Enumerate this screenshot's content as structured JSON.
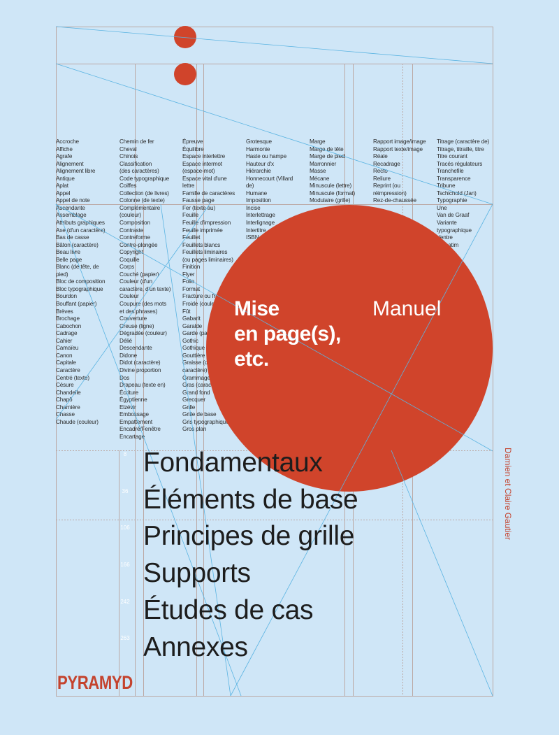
{
  "cover": {
    "title": "Mise en page(s), etc.",
    "title_lines": [
      "Mise",
      "en page(s),",
      "etc."
    ],
    "subtitle": "Manuel",
    "authors": "Damien et Claire Gautier",
    "publisher": "PYRAMYD"
  },
  "chapters": [
    {
      "label": "Fondamentaux",
      "page": "8"
    },
    {
      "label": "Éléments de base",
      "page": "36"
    },
    {
      "label": "Principes de grille",
      "page": "106"
    },
    {
      "label": "Supports",
      "page": "166"
    },
    {
      "label": "Études de cas",
      "page": "242"
    },
    {
      "label": "Annexes",
      "page": "263"
    }
  ],
  "glossary_columns": [
    [
      "Accroche",
      "Affiche",
      "Agrafe",
      "Alignement",
      "Alignement libre",
      "Antique",
      "Aplat",
      "Appel",
      "Appel de note",
      "Ascendante",
      "Assemblage",
      "Attributs graphiques",
      "Axe (d'un caractère)",
      "Bas de casse",
      "Bâton (caractère)",
      "Beau livre",
      "Belle page",
      "Blanc (de tête, de",
      "pied)",
      "Bloc de composition",
      "Bloc typographique",
      "Bourdon",
      "Bouffant (papier)",
      "Brèves",
      "Brochage",
      "Cabochon",
      "Cadrage",
      "Cahier",
      "Camaïeu",
      "Canon",
      "Capitale",
      "Caractère",
      "Centré (texte)",
      "Césure",
      "Chandelle",
      "Chapô",
      "Charnière",
      "Chasse",
      "Chaude (couleur)"
    ],
    [
      "Chemin de fer",
      "Cheval",
      "Chinois",
      "Classification",
      "(des caractères)",
      "Code typographique",
      "Coiffes",
      "Collection (de livres)",
      "Colonne (de texte)",
      "Complémentaire",
      "(couleur)",
      "Composition",
      "Contraste",
      "Contreforme",
      "Contre-plongée",
      "Copyright",
      "Coquille",
      "Corps",
      "Couché (papier)",
      "Couleur (d'un",
      "caractère, d'un texte)",
      "Couleur",
      "Coupure (des mots",
      "et des phrases)",
      "Couverture",
      "Creuse (ligne)",
      "Dégradée (couleur)",
      "Délié",
      "Descendante",
      "Didone",
      "Didot (caractère)",
      "Divine proportion",
      "Dos",
      "Drapeau (texte en)",
      "Écriture",
      "Égyptienne",
      "Elzévir",
      "Embossage",
      "Empattement",
      "Encadré/Fenêtre",
      "Encartage"
    ],
    [
      "Épreuve",
      "Équilibre",
      "Espace interlettre",
      "Espace intermot",
      "(espace-mot)",
      "Espace vital d'une",
      "lettre",
      "Famille de caractères",
      "Fausse page",
      "Fer (texte au)",
      "Feuille",
      "Feuille d'impression",
      "Feuille imprimée",
      "Feuillet",
      "Feuillets blancs",
      "Feuillets liminaires",
      "(ou pages liminaires)",
      "Finition",
      "Flyer",
      "Folio",
      "Format",
      "Fracture ou fraktur",
      "Froide (couleur)",
      "Fût",
      "Gabarit",
      "Garalde",
      "Garde (page de)",
      "Gothic",
      "Gothique",
      "Gouttière",
      "Graisse (d'un",
      "caractère)",
      "Grammage",
      "Gras (caractère)",
      "Grand fond",
      "Grecquer",
      "Grille",
      "Grille de base",
      "Gris typographique",
      "Gros plan"
    ],
    [
      "Grotesque",
      "Harmonie",
      "Haste ou hampe",
      "Hauteur d'x",
      "Hiérarchie",
      "Honnecourt (Villard",
      "de)",
      "Humane",
      "Imposition",
      "Incise",
      "Interlettrage",
      "Interlignage",
      "Intertitre",
      "ISBN"
    ],
    [
      "Marge",
      "Marge de tête",
      "Marge de pied",
      "Marronnier",
      "Masse",
      "Mécane",
      "Minuscule (lettre)",
      "Minuscule (format)",
      "Modulaire (grille)"
    ],
    [
      "Rapport image/image",
      "Rapport texte/image",
      "Réale",
      "Recadrage",
      "Recto",
      "Reliure",
      "Reprint (ou",
      "réimpression)",
      "Rez-de-chaussée"
    ],
    [
      "Titrage (caractère de)",
      "Titrage, titraille, titre",
      "Titre courant",
      "Tracés régulateurs",
      "Tranchefile",
      "Transparence",
      "Tribune",
      "Tschichold (Jan)",
      "Typographie",
      "Une",
      "Van de Graaf",
      "Variante",
      "typographique",
      "Ventre",
      "Verbatim"
    ]
  ],
  "colors": {
    "background": "#cfe6f7",
    "accent": "#d0442b",
    "grid": "#b9a9a6",
    "guides": "#5bb4e2"
  }
}
